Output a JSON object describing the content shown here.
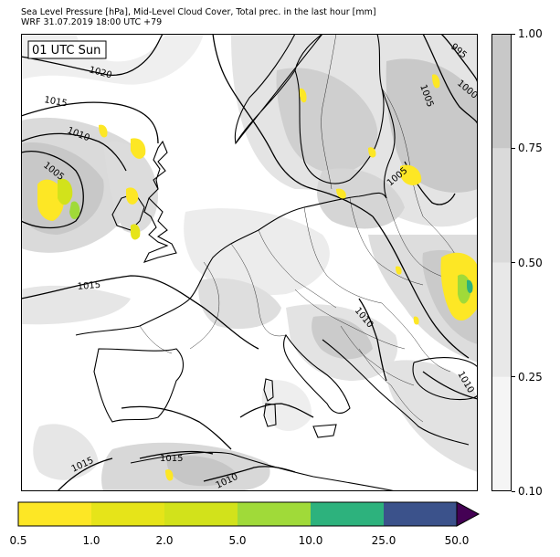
{
  "title": {
    "line1": "Sea Level Pressure [hPa], Mid-Level Cloud Cover, Total prec. in the last hour [mm]",
    "line2": "WRF 31.07.2019 18:00 UTC +79"
  },
  "map": {
    "time_label": "01 UTC Sun",
    "isobar_labels": [
      "1020",
      "1015",
      "1010",
      "1005",
      "1015",
      "1010",
      "1005",
      "995",
      "1000",
      "1005",
      "1010",
      "1015",
      "1015",
      "1010"
    ]
  },
  "cloud_colorbar": {
    "ticks": [
      "1.00",
      "0.75",
      "0.50",
      "0.25",
      "0.10"
    ],
    "levels": [
      {
        "from": 0.75,
        "to": 1.0,
        "color": "#c8c8c8"
      },
      {
        "from": 0.5,
        "to": 0.75,
        "color": "#dadada"
      },
      {
        "from": 0.25,
        "to": 0.5,
        "color": "#e8e8e8"
      },
      {
        "from": 0.1,
        "to": 0.25,
        "color": "#f5f5f5"
      }
    ]
  },
  "precip_colorbar": {
    "ticks": [
      "0.5",
      "1.0",
      "2.0",
      "5.0",
      "10.0",
      "25.0",
      "50.0"
    ],
    "colors": [
      "#fde725",
      "#e6e419",
      "#d2e21b",
      "#a0da39",
      "#2db27d",
      "#3b528b",
      "#440154"
    ]
  }
}
